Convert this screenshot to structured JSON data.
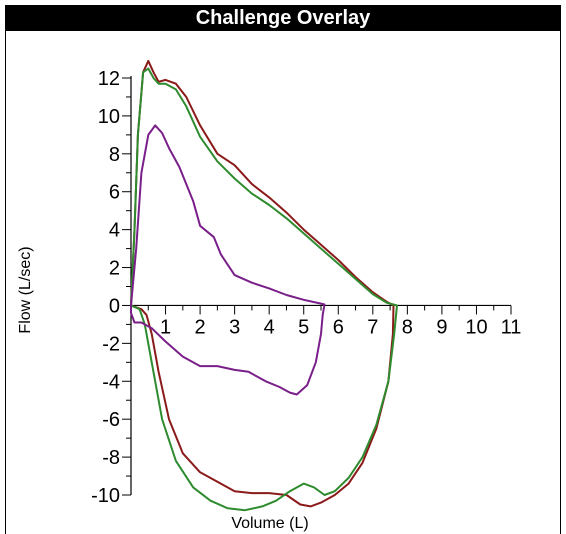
{
  "title": "Challenge Overlay",
  "chart_data": {
    "type": "line",
    "title": "Challenge Overlay",
    "xlabel": "Volume (L)",
    "ylabel": "Flow  (L/sec)",
    "xlim": [
      0,
      11
    ],
    "ylim": [
      -10,
      12
    ],
    "x_ticks": [
      1,
      2,
      3,
      4,
      5,
      6,
      7,
      8,
      9,
      10,
      11
    ],
    "y_ticks": [
      -10,
      -8,
      -6,
      -4,
      -2,
      0,
      2,
      4,
      6,
      8,
      10,
      12
    ],
    "grid": false,
    "legend": "none",
    "series": [
      {
        "color": "#8b1a1a",
        "points": [
          [
            0,
            0
          ],
          [
            0.1,
            4
          ],
          [
            0.2,
            9
          ],
          [
            0.35,
            12.3
          ],
          [
            0.5,
            12.9
          ],
          [
            0.65,
            12.3
          ],
          [
            0.8,
            11.8
          ],
          [
            1.0,
            11.9
          ],
          [
            1.3,
            11.7
          ],
          [
            1.6,
            11.0
          ],
          [
            2.0,
            9.5
          ],
          [
            2.5,
            8.0
          ],
          [
            3.0,
            7.4
          ],
          [
            3.5,
            6.4
          ],
          [
            4.0,
            5.7
          ],
          [
            4.5,
            4.9
          ],
          [
            5.0,
            4.0
          ],
          [
            5.5,
            3.2
          ],
          [
            6.0,
            2.4
          ],
          [
            6.5,
            1.5
          ],
          [
            7.0,
            0.7
          ],
          [
            7.4,
            0.2
          ],
          [
            7.6,
            0
          ],
          [
            7.58,
            -1.5
          ],
          [
            7.45,
            -4
          ],
          [
            7.1,
            -6.5
          ],
          [
            6.7,
            -8.3
          ],
          [
            6.3,
            -9.4
          ],
          [
            5.9,
            -10.0
          ],
          [
            5.5,
            -10.4
          ],
          [
            5.2,
            -10.6
          ],
          [
            4.9,
            -10.5
          ],
          [
            4.5,
            -10.0
          ],
          [
            4.0,
            -9.9
          ],
          [
            3.5,
            -9.9
          ],
          [
            3.0,
            -9.8
          ],
          [
            2.5,
            -9.3
          ],
          [
            2.0,
            -8.8
          ],
          [
            1.5,
            -7.8
          ],
          [
            1.1,
            -6.0
          ],
          [
            0.8,
            -3.5
          ],
          [
            0.6,
            -1.5
          ],
          [
            0.45,
            -0.5
          ],
          [
            0.3,
            -0.2
          ],
          [
            0,
            0
          ]
        ]
      },
      {
        "color": "#2e8b2e",
        "points": [
          [
            0,
            0
          ],
          [
            0.1,
            4
          ],
          [
            0.2,
            9
          ],
          [
            0.35,
            12.3
          ],
          [
            0.5,
            12.5
          ],
          [
            0.65,
            12.0
          ],
          [
            0.8,
            11.7
          ],
          [
            1.0,
            11.7
          ],
          [
            1.3,
            11.4
          ],
          [
            1.6,
            10.5
          ],
          [
            2.0,
            8.9
          ],
          [
            2.5,
            7.6
          ],
          [
            3.0,
            6.7
          ],
          [
            3.5,
            5.9
          ],
          [
            4.0,
            5.3
          ],
          [
            4.5,
            4.6
          ],
          [
            5.0,
            3.8
          ],
          [
            5.5,
            3.0
          ],
          [
            6.0,
            2.2
          ],
          [
            6.5,
            1.4
          ],
          [
            7.0,
            0.6
          ],
          [
            7.4,
            0.15
          ],
          [
            7.7,
            0
          ],
          [
            7.62,
            -1.5
          ],
          [
            7.45,
            -4
          ],
          [
            7.1,
            -6.3
          ],
          [
            6.7,
            -8.0
          ],
          [
            6.3,
            -9.1
          ],
          [
            5.9,
            -9.8
          ],
          [
            5.6,
            -10.0
          ],
          [
            5.3,
            -9.6
          ],
          [
            5.0,
            -9.4
          ],
          [
            4.6,
            -9.8
          ],
          [
            4.2,
            -10.3
          ],
          [
            3.8,
            -10.6
          ],
          [
            3.3,
            -10.8
          ],
          [
            2.8,
            -10.7
          ],
          [
            2.3,
            -10.3
          ],
          [
            1.8,
            -9.6
          ],
          [
            1.3,
            -8.2
          ],
          [
            0.9,
            -6.0
          ],
          [
            0.6,
            -3.0
          ],
          [
            0.4,
            -1.0
          ],
          [
            0.25,
            -0.2
          ],
          [
            0,
            0
          ]
        ]
      },
      {
        "color": "#7a1f8a",
        "points": [
          [
            0,
            0
          ],
          [
            0.15,
            3
          ],
          [
            0.3,
            7
          ],
          [
            0.5,
            9.0
          ],
          [
            0.7,
            9.5
          ],
          [
            0.9,
            9.1
          ],
          [
            1.1,
            8.3
          ],
          [
            1.4,
            7.3
          ],
          [
            1.8,
            5.5
          ],
          [
            2.0,
            4.2
          ],
          [
            2.4,
            3.6
          ],
          [
            2.6,
            2.7
          ],
          [
            3.0,
            1.6
          ],
          [
            3.5,
            1.2
          ],
          [
            4.0,
            0.9
          ],
          [
            4.5,
            0.55
          ],
          [
            5.0,
            0.3
          ],
          [
            5.5,
            0.1
          ],
          [
            5.6,
            0.05
          ],
          [
            5.55,
            -0.5
          ],
          [
            5.5,
            -1.5
          ],
          [
            5.35,
            -3.0
          ],
          [
            5.1,
            -4.2
          ],
          [
            4.8,
            -4.7
          ],
          [
            4.6,
            -4.6
          ],
          [
            4.3,
            -4.3
          ],
          [
            3.9,
            -4.0
          ],
          [
            3.4,
            -3.5
          ],
          [
            3.0,
            -3.4
          ],
          [
            2.5,
            -3.2
          ],
          [
            2.0,
            -3.2
          ],
          [
            1.5,
            -2.7
          ],
          [
            1.0,
            -1.9
          ],
          [
            0.6,
            -1.2
          ],
          [
            0.3,
            -0.9
          ],
          [
            0.1,
            -0.9
          ],
          [
            0,
            -0.4
          ],
          [
            0,
            0
          ]
        ]
      }
    ]
  }
}
